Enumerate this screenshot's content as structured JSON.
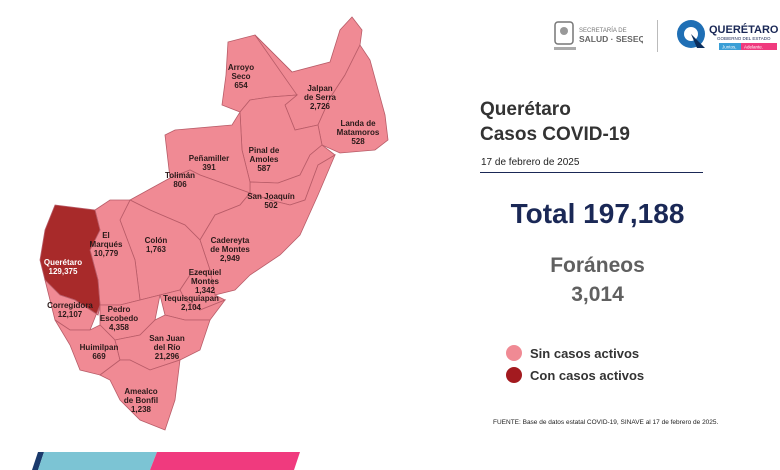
{
  "header": {
    "logo_left": "SECRETARÍA DE SALUD · SESEQ",
    "logo_right": "QUERÉTARO GOBIERNO DEL ESTADO Juntos, Adelante."
  },
  "title_line1": "Querétaro",
  "title_line2": "Casos COVID-19",
  "date": "17 de febrero de 2025",
  "total": "Total 197,188",
  "foraneos_label": "Foráneos",
  "foraneos_value": "3,014",
  "legend": [
    {
      "label": "Sin casos activos",
      "color": "#f08a94"
    },
    {
      "label": "Con casos activos",
      "color": "#a31a1f"
    }
  ],
  "source": "FUENTE: Base de datos estatal COVID-19, SINAVE al 17 de febrero de 2025.",
  "municipalities": [
    {
      "name": "Arroyo Seco",
      "cases": "654",
      "active": false
    },
    {
      "name": "Jalpan de Serra",
      "cases": "2,726",
      "active": false
    },
    {
      "name": "Landa de Matamoros",
      "cases": "528",
      "active": false
    },
    {
      "name": "Pinal de Amoles",
      "cases": "587",
      "active": false
    },
    {
      "name": "San Joaquín",
      "cases": "502",
      "active": false
    },
    {
      "name": "Peñamiller",
      "cases": "391",
      "active": false
    },
    {
      "name": "Tolimán",
      "cases": "806",
      "active": false
    },
    {
      "name": "Cadereyta de Montes",
      "cases": "2,949",
      "active": false
    },
    {
      "name": "Colón",
      "cases": "1,763",
      "active": false
    },
    {
      "name": "El Marqués",
      "cases": "10,779",
      "active": false
    },
    {
      "name": "Querétaro",
      "cases": "129,375",
      "active": true
    },
    {
      "name": "Corregidora",
      "cases": "12,107",
      "active": false
    },
    {
      "name": "Pedro Escobedo",
      "cases": "4,358",
      "active": false
    },
    {
      "name": "Huimilpan",
      "cases": "669",
      "active": false
    },
    {
      "name": "Ezequiel Montes",
      "cases": "1,342",
      "active": false
    },
    {
      "name": "Tequisquiapan",
      "cases": "2,104",
      "active": false
    },
    {
      "name": "San Juan del Río",
      "cases": "21,296",
      "active": false
    },
    {
      "name": "Amealco de Bonfil",
      "cases": "1,238",
      "active": false
    }
  ],
  "colors": {
    "inactive": "#f08a94",
    "active": "#a82a2a",
    "navy": "#1a2856",
    "bar_blue": "#7cc4d4",
    "bar_pink": "#f03a7e"
  }
}
